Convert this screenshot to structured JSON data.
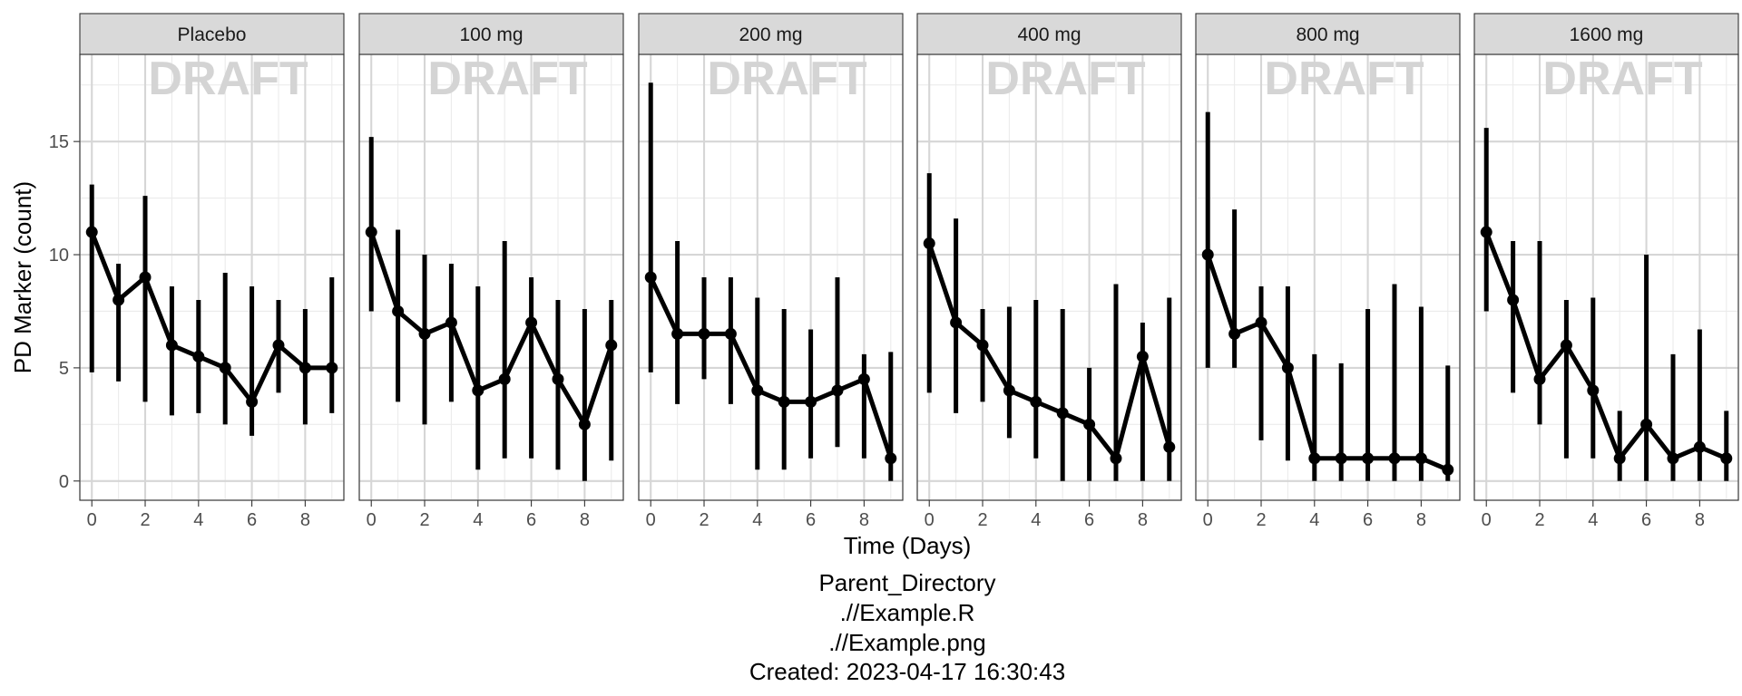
{
  "chart_data": {
    "type": "line",
    "xlabel": "Time (Days)",
    "ylabel": "PD Marker (count)",
    "xlim": [
      -0.45,
      9.45
    ],
    "ylim": [
      -0.85,
      18.85
    ],
    "x_ticks": [
      0,
      2,
      4,
      6,
      8
    ],
    "y_ticks": [
      0,
      5,
      10,
      15
    ],
    "x": [
      0,
      1,
      2,
      3,
      4,
      5,
      6,
      7,
      8,
      9
    ],
    "grid": true,
    "legend": "none",
    "watermark": "DRAFT",
    "line_color": "#000000",
    "panels": [
      {
        "label": "Placebo",
        "y": [
          11,
          8,
          9,
          6,
          5.5,
          5,
          3.5,
          6,
          5,
          5
        ],
        "low": [
          4.8,
          4.4,
          3.5,
          2.9,
          3,
          2.5,
          2,
          3.9,
          2.5,
          3
        ],
        "high": [
          13.1,
          9.6,
          12.6,
          8.6,
          8,
          9.2,
          8.6,
          8,
          7.6,
          9
        ]
      },
      {
        "label": "100 mg",
        "y": [
          11,
          7.5,
          6.5,
          7,
          4,
          4.5,
          7,
          4.5,
          2.5,
          6
        ],
        "low": [
          7.5,
          3.5,
          2.5,
          3.5,
          0.5,
          1,
          1,
          0.5,
          0,
          0.9
        ],
        "high": [
          15.2,
          11.1,
          10,
          9.6,
          8.6,
          10.6,
          9,
          8,
          7.6,
          8
        ]
      },
      {
        "label": "200 mg",
        "y": [
          9,
          6.5,
          6.5,
          6.5,
          4,
          3.5,
          3.5,
          4,
          4.5,
          1
        ],
        "low": [
          4.8,
          3.4,
          4.5,
          3.4,
          0.5,
          0.5,
          1,
          1.5,
          1,
          0
        ],
        "high": [
          17.6,
          10.6,
          9,
          9,
          8.1,
          7.6,
          6.7,
          9,
          5.6,
          5.7
        ]
      },
      {
        "label": "400 mg",
        "y": [
          10.5,
          7,
          6,
          4,
          3.5,
          3,
          2.5,
          1,
          5.5,
          1.5
        ],
        "low": [
          3.9,
          3,
          3.5,
          1.9,
          1,
          0,
          0,
          0,
          0,
          0
        ],
        "high": [
          13.6,
          11.6,
          7.6,
          7.7,
          8,
          7.6,
          5,
          8.7,
          7,
          8.1
        ]
      },
      {
        "label": "800 mg",
        "y": [
          10,
          6.5,
          7,
          5,
          1,
          1,
          1,
          1,
          1,
          0.5
        ],
        "low": [
          5,
          5,
          1.8,
          0.9,
          0,
          0,
          0,
          0,
          0,
          0
        ],
        "high": [
          16.3,
          12,
          8.6,
          8.6,
          5.6,
          5.2,
          7.6,
          8.7,
          7.7,
          5.1
        ]
      },
      {
        "label": "1600 mg",
        "y": [
          11,
          8,
          4.5,
          6,
          4,
          1,
          2.5,
          1,
          1.5,
          1
        ],
        "low": [
          7.5,
          3.9,
          2.5,
          1,
          1,
          0,
          0,
          0,
          0,
          0
        ],
        "high": [
          15.6,
          10.6,
          10.6,
          8,
          8.1,
          3.1,
          10,
          5.6,
          6.7,
          3.1
        ]
      }
    ]
  },
  "caption": {
    "lines": [
      "Parent_Directory",
      ".//Example.R",
      ".//Example.png",
      "Created: 2023-04-17 16:30:43"
    ]
  }
}
